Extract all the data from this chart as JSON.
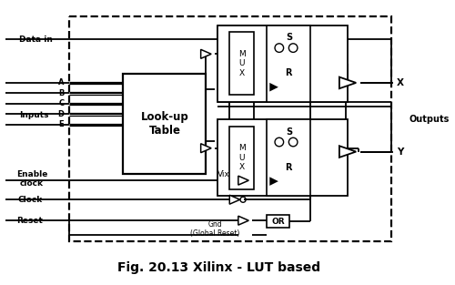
{
  "title": "Fig. 20.13 Xilinx - LUT based",
  "title_fontsize": 10,
  "bg_color": "#ffffff",
  "line_color": "#000000",
  "labels": {
    "data_in": "Data in",
    "inputs": "Inputs",
    "input_lines": [
      "A",
      "B",
      "C",
      "D",
      "E"
    ],
    "lut": "Look-up\nTable",
    "enable_clock": "Enable\nclock",
    "clock": "Clock",
    "reset": "Reset",
    "vix": "Vix",
    "gnd": "Gnd\n(Global Reset)",
    "mux": "M\nU\nX",
    "or_gate": "OR",
    "x_out": "X",
    "y_out": "Y",
    "outputs": "Outputs",
    "s": "S",
    "r": "R"
  },
  "figsize": [
    5.0,
    3.13
  ],
  "dpi": 100
}
